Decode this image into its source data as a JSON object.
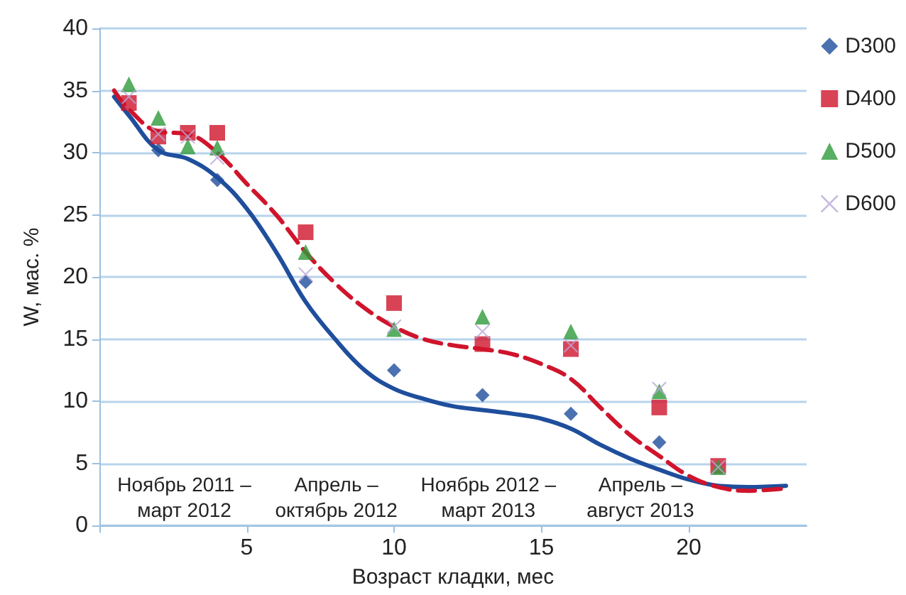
{
  "chart_data": {
    "type": "scatter",
    "xlabel": "Возраст кладки, мес",
    "ylabel": "W, мас. %",
    "xlim": [
      0,
      24
    ],
    "xticks": [
      {
        "value": 0,
        "label": null
      },
      5,
      10,
      15,
      20
    ],
    "ylim": [
      0,
      40
    ],
    "yticks": [
      0,
      5,
      10,
      15,
      20,
      25,
      30,
      35,
      40
    ],
    "grid": "y",
    "legend": "top right",
    "annotations": [
      "Ноябрь 2011 –\nмарт 2012",
      "Апрель –\nоктябрь 2012",
      "Ноябрь 2012 –\nмарт 2013",
      "Апрель –\nавгуст 2013"
    ],
    "series": [
      {
        "name": "D300",
        "color": "#1f4e9c",
        "marker": "diamond",
        "x": [
          2,
          4,
          7,
          10,
          13,
          16,
          19
        ],
        "values": [
          30.2,
          27.8,
          19.6,
          12.5,
          10.5,
          9,
          6.7
        ]
      },
      {
        "name": "D400",
        "color": "#d0142c",
        "marker": "square",
        "x": [
          1,
          2,
          3,
          4,
          7,
          10,
          13,
          16,
          19,
          21
        ],
        "values": [
          34,
          31.3,
          31.6,
          31.6,
          23.6,
          17.9,
          14.6,
          14.2,
          9.5,
          4.8
        ]
      },
      {
        "name": "D500",
        "color": "#2e9a3a",
        "marker": "triangle",
        "x": [
          1,
          2,
          3,
          4,
          7,
          10,
          13,
          16,
          19,
          21
        ],
        "values": [
          35.5,
          32.8,
          30.5,
          30.4,
          22,
          15.8,
          16.8,
          15.6,
          10.8,
          4.7
        ]
      },
      {
        "name": "D600",
        "color": "#b9a6d6",
        "marker": "cross",
        "x": [
          1,
          2,
          3,
          4,
          7,
          10,
          13,
          16,
          19,
          21
        ],
        "values": [
          34.5,
          31.5,
          31.3,
          29.6,
          20.2,
          16,
          15.6,
          14.5,
          11,
          4.7
        ]
      },
      {
        "type": "line",
        "color": "#1f4e9c",
        "marker": "none",
        "line_style": "solid",
        "x": [
          0.5,
          1,
          2,
          3,
          4,
          5,
          6,
          7,
          8,
          9,
          10,
          11,
          12,
          13,
          14,
          15,
          16,
          17,
          18,
          19,
          20,
          21,
          22,
          23.3
        ],
        "values": [
          34.5,
          33,
          30.2,
          29.5,
          28,
          25.5,
          22,
          18,
          15,
          12.5,
          11,
          10.2,
          9.6,
          9.3,
          9,
          8.6,
          7.8,
          6.5,
          5.4,
          4.5,
          3.7,
          3.2,
          3.1,
          3.2
        ]
      },
      {
        "type": "line",
        "color": "#d0142c",
        "marker": "none",
        "line_style": "dashed",
        "x": [
          0.5,
          1,
          2,
          3,
          4,
          5,
          6,
          7,
          8,
          9,
          10,
          11,
          12,
          13,
          14,
          15,
          16,
          17,
          18,
          19,
          20,
          21,
          22,
          23.3
        ],
        "values": [
          35,
          33.5,
          31.7,
          31.5,
          30,
          27.5,
          25,
          22,
          19.5,
          17.5,
          16,
          15,
          14.5,
          14.2,
          13.8,
          13,
          11.8,
          9.5,
          7.3,
          5.6,
          4,
          3.1,
          2.8,
          3
        ]
      }
    ]
  }
}
